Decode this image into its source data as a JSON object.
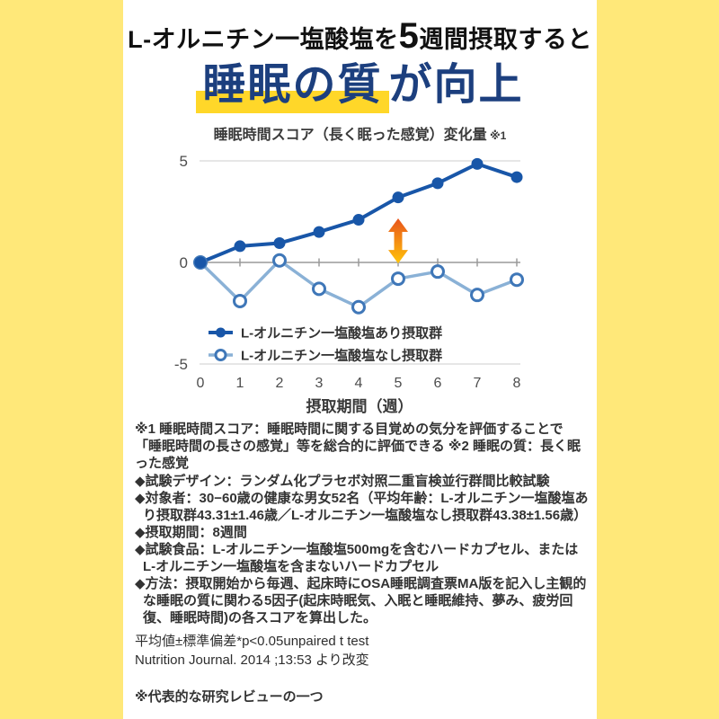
{
  "page": {
    "border_color": "#FFE879",
    "card_color": "#FFFFFF"
  },
  "header": {
    "line1_prefix": "L-オルニチン一塩酸塩を",
    "line1_big": "5",
    "line1_suffix": "週間摂取すると",
    "line2_highlight": "睡眠の質",
    "line2_rest": "が向上",
    "headline_color": "#1C3F7E",
    "highlight_color": "#FFD729"
  },
  "chart_data": {
    "type": "line",
    "title": "睡眠時間スコア（長く眠った感覚）変化量",
    "title_note": "※1",
    "xlabel": "摂取期間（週）",
    "x": [
      0,
      1,
      2,
      3,
      4,
      5,
      6,
      7,
      8
    ],
    "x_tick_labels": [
      "0",
      "1",
      "2",
      "3",
      "4",
      "5",
      "6",
      "7",
      "8"
    ],
    "ylim": [
      -5,
      5
    ],
    "yticks": [
      5,
      0,
      -5
    ],
    "grid": "horizontal",
    "legend_position": "inside-bottom-left",
    "series": [
      {
        "name": "L-オルニチン一塩酸塩あり摂取群",
        "marker": "filled",
        "color": "#1856A8",
        "marker_color": "#1856A8",
        "values": [
          0,
          0.8,
          0.95,
          1.5,
          2.1,
          3.2,
          3.9,
          4.85,
          4.2
        ]
      },
      {
        "name": "L-オルニチン一塩酸塩なし摂取群",
        "marker": "open",
        "color": "#8AB1D6",
        "marker_color": "#3F77B8",
        "values": [
          0,
          -1.9,
          0.1,
          -1.3,
          -2.2,
          -0.8,
          -0.45,
          -1.6,
          -0.85
        ]
      }
    ],
    "annotation_arrow": {
      "x": 5,
      "value_from": 2.7,
      "value_to": -0.45,
      "color_top": "#E8541C",
      "color_bottom": "#FFC40A"
    }
  },
  "footnotes": {
    "note1": "※1 睡眠時間スコア：睡眠時間に関する目覚めの気分を評価することで「睡眠時間の長さの感覚」等を総合的に評価できる ※2 睡眠の質：長く眠った感覚"
  },
  "study": {
    "bullets": [
      "◆試験デザイン：ランダム化プラセボ対照二重盲検並行群間比較試験",
      "◆対象者：30−60歳の健康な男女52名（平均年齢：L-オルニチン一塩酸塩あり摂取群43.31±1.46歳／L-オルニチン一塩酸塩なし摂取群43.38±1.56歳）",
      "◆摂取期間：8週間",
      "◆試験食品：L-オルニチン一塩酸塩500mgを含むハードカプセル、またはL-オルニチン一塩酸塩を含まないハードカプセル",
      "◆方法：摂取開始から毎週、起床時にOSA睡眠調査票MA版を記入し主観的な睡眠の質に関わる5因子(起床時眠気、入眠と睡眠維持、夢み、疲労回復、睡眠時間)の各スコアを算出した。"
    ]
  },
  "stats": {
    "line1": "平均値±標準偏差*p<0.05unpaired t test",
    "line2": "Nutrition Journal. 2014 ;13:53 より改変"
  },
  "bottom_note": "※代表的な研究レビューの一つ"
}
